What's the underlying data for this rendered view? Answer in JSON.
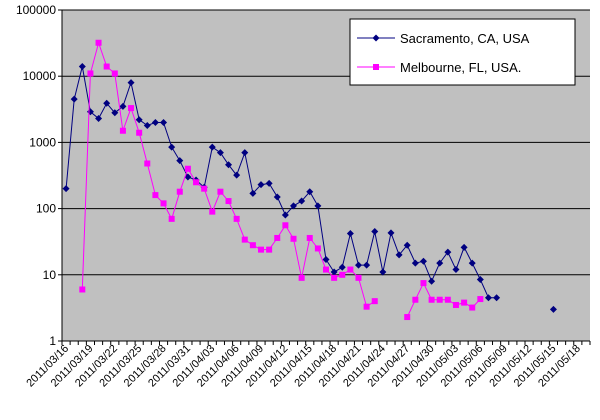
{
  "chart_data": {
    "type": "line",
    "title": "",
    "xlabel": "",
    "ylabel": "",
    "y_scale": "log",
    "ylim": [
      1,
      100000
    ],
    "y_ticks": [
      "1",
      "10",
      "100",
      "1000",
      "10000",
      "100000"
    ],
    "x_range": [
      "2011/03/16",
      "2011/05/19"
    ],
    "x_tick_labels": [
      "2011/03/16",
      "2011/03/19",
      "2011/03/22",
      "2011/03/25",
      "2011/03/28",
      "2011/03/31",
      "2011/04/03",
      "2011/04/06",
      "2011/04/09",
      "2011/04/12",
      "2011/04/15",
      "2011/04/18",
      "2011/04/21",
      "2011/04/24",
      "2011/04/27",
      "2011/04/30",
      "2011/05/03",
      "2011/05/06",
      "2011/05/09",
      "2011/05/12",
      "2011/05/15",
      "2011/05/18"
    ],
    "grid": true,
    "legend_position": "top-right",
    "plot_background": "#C0C0C0",
    "series": [
      {
        "name": "Sacramento, CA, USA",
        "color": "#000080",
        "marker": "diamond",
        "points": [
          [
            "2011/03/16",
            200
          ],
          [
            "2011/03/17",
            4500
          ],
          [
            "2011/03/18",
            14000
          ],
          [
            "2011/03/19",
            2900
          ],
          [
            "2011/03/20",
            2300
          ],
          [
            "2011/03/21",
            3900
          ],
          [
            "2011/03/22",
            2800
          ],
          [
            "2011/03/23",
            3500
          ],
          [
            "2011/03/24",
            8000
          ],
          [
            "2011/03/25",
            2200
          ],
          [
            "2011/03/26",
            1800
          ],
          [
            "2011/03/27",
            2000
          ],
          [
            "2011/03/28",
            2000
          ],
          [
            "2011/03/29",
            850
          ],
          [
            "2011/03/30",
            530
          ],
          [
            "2011/03/31",
            300
          ],
          [
            "2011/04/01",
            270
          ],
          [
            "2011/04/02",
            210
          ],
          [
            "2011/04/03",
            850
          ],
          [
            "2011/04/04",
            700
          ],
          [
            "2011/04/05",
            460
          ],
          [
            "2011/04/06",
            320
          ],
          [
            "2011/04/07",
            700
          ],
          [
            "2011/04/08",
            170
          ],
          [
            "2011/04/09",
            230
          ],
          [
            "2011/04/10",
            240
          ],
          [
            "2011/04/11",
            150
          ],
          [
            "2011/04/12",
            80
          ],
          [
            "2011/04/13",
            110
          ],
          [
            "2011/04/14",
            130
          ],
          [
            "2011/04/15",
            180
          ],
          [
            "2011/04/16",
            110
          ],
          [
            "2011/04/17",
            17
          ],
          [
            "2011/04/18",
            11
          ],
          [
            "2011/04/19",
            13
          ],
          [
            "2011/04/20",
            42
          ],
          [
            "2011/04/21",
            14
          ],
          [
            "2011/04/22",
            14
          ],
          [
            "2011/04/23",
            45
          ],
          [
            "2011/04/24",
            11
          ],
          [
            "2011/04/25",
            43
          ],
          [
            "2011/04/26",
            20
          ],
          [
            "2011/04/27",
            28
          ],
          [
            "2011/04/28",
            15
          ],
          [
            "2011/04/29",
            16
          ],
          [
            "2011/04/30",
            8
          ],
          [
            "2011/05/01",
            15
          ],
          [
            "2011/05/02",
            22
          ],
          [
            "2011/05/03",
            12
          ],
          [
            "2011/05/04",
            26
          ],
          [
            "2011/05/05",
            15
          ],
          [
            "2011/05/06",
            8.5
          ],
          [
            "2011/05/07",
            4.5
          ],
          [
            "2011/05/08",
            4.5
          ],
          null,
          null,
          null,
          null,
          null,
          null,
          null,
          [
            "2011/05/15",
            3
          ]
        ]
      },
      {
        "name": "Melbourne, FL, USA.",
        "color": "#FF00FF",
        "marker": "square",
        "points": [
          [
            "2011/03/18",
            6
          ],
          [
            "2011/03/19",
            11000
          ],
          [
            "2011/03/20",
            32000
          ],
          [
            "2011/03/21",
            14000
          ],
          [
            "2011/03/22",
            11000
          ],
          [
            "2011/03/23",
            1500
          ],
          [
            "2011/03/24",
            3300
          ],
          [
            "2011/03/25",
            1400
          ],
          [
            "2011/03/26",
            480
          ],
          [
            "2011/03/27",
            160
          ],
          [
            "2011/03/28",
            120
          ],
          [
            "2011/03/29",
            70
          ],
          [
            "2011/03/30",
            180
          ],
          [
            "2011/03/31",
            400
          ],
          [
            "2011/04/01",
            250
          ],
          [
            "2011/04/02",
            200
          ],
          [
            "2011/04/03",
            90
          ],
          [
            "2011/04/04",
            180
          ],
          [
            "2011/04/05",
            130
          ],
          [
            "2011/04/06",
            70
          ],
          [
            "2011/04/07",
            34
          ],
          [
            "2011/04/08",
            28
          ],
          [
            "2011/04/09",
            24
          ],
          [
            "2011/04/10",
            24
          ],
          [
            "2011/04/11",
            36
          ],
          [
            "2011/04/12",
            56
          ],
          [
            "2011/04/13",
            35
          ],
          [
            "2011/04/14",
            9
          ],
          [
            "2011/04/15",
            36
          ],
          [
            "2011/04/16",
            25
          ],
          [
            "2011/04/17",
            12
          ],
          [
            "2011/04/18",
            9
          ],
          [
            "2011/04/19",
            10
          ],
          [
            "2011/04/20",
            12
          ],
          [
            "2011/04/21",
            9
          ],
          [
            "2011/04/22",
            3.3
          ],
          [
            "2011/04/23",
            4
          ],
          null,
          null,
          null,
          [
            "2011/04/27",
            2.3
          ],
          [
            "2011/04/28",
            4.2
          ],
          [
            "2011/04/29",
            7.5
          ],
          [
            "2011/04/30",
            4.2
          ],
          [
            "2011/05/01",
            4.2
          ],
          [
            "2011/05/02",
            4.2
          ],
          [
            "2011/05/03",
            3.5
          ],
          [
            "2011/05/04",
            3.8
          ],
          [
            "2011/05/05",
            3.2
          ],
          [
            "2011/05/06",
            4.3
          ]
        ]
      }
    ]
  }
}
